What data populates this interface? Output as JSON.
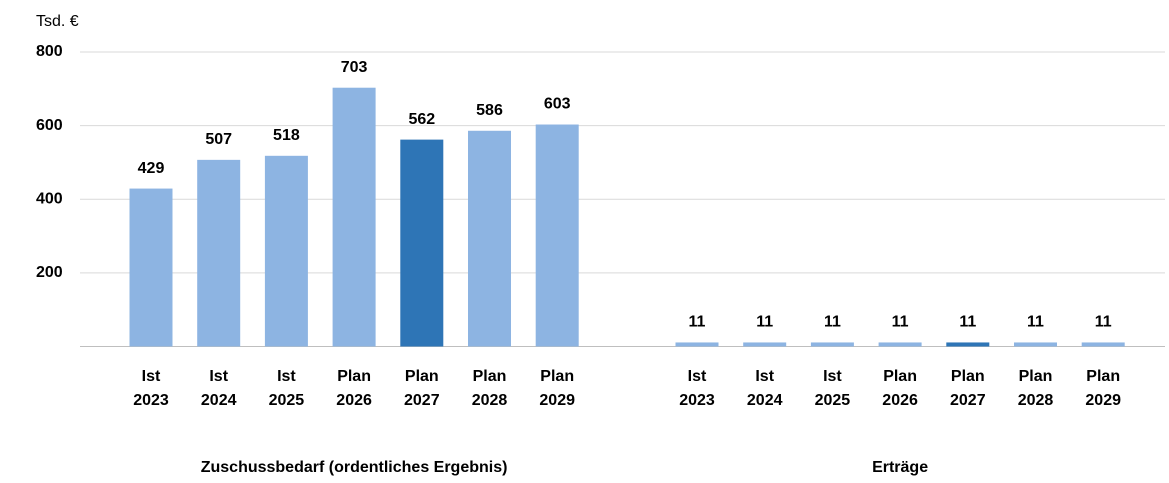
{
  "chart_data": {
    "type": "bar",
    "y_label": "Tsd. €",
    "ylim": [
      0,
      800
    ],
    "yticks": [
      200,
      400,
      600,
      800
    ],
    "grid": true,
    "groups": [
      {
        "name": "Zuschussbedarf (ordentliches Ergebnis)",
        "categories": [
          "Ist 2023",
          "Ist 2024",
          "Ist 2025",
          "Plan 2026",
          "Plan 2027",
          "Plan 2028",
          "Plan 2029"
        ],
        "values": [
          429,
          507,
          518,
          703,
          562,
          586,
          603
        ],
        "colors": [
          "#8db4e2",
          "#8db4e2",
          "#8db4e2",
          "#8db4e2",
          "#2e75b6",
          "#8db4e2",
          "#8db4e2"
        ]
      },
      {
        "name": "Erträge",
        "categories": [
          "Ist 2023",
          "Ist 2024",
          "Ist 2025",
          "Plan 2026",
          "Plan 2027",
          "Plan 2028",
          "Plan 2029"
        ],
        "values": [
          11,
          11,
          11,
          11,
          11,
          11,
          11
        ],
        "colors": [
          "#8db4e2",
          "#8db4e2",
          "#8db4e2",
          "#8db4e2",
          "#2e75b6",
          "#8db4e2",
          "#8db4e2"
        ]
      }
    ]
  }
}
